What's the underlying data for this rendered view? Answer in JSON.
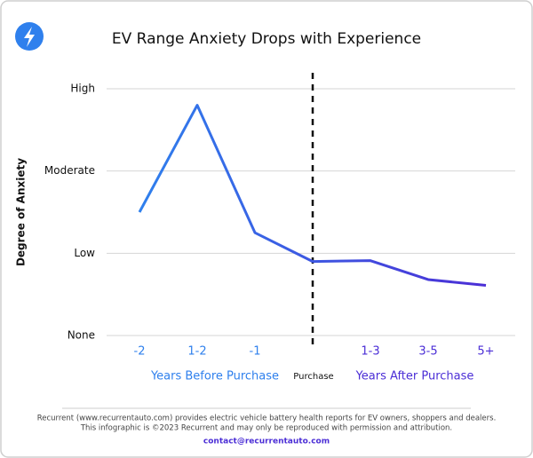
{
  "chart_data": {
    "type": "line",
    "title": "EV Range Anxiety Drops with Experience",
    "ylabel": "Degree of Anxiety",
    "categories": [
      "-2",
      "1-2",
      "-1",
      null,
      "1-3",
      "3-5",
      "5+"
    ],
    "series": [
      {
        "values": [
          1.5,
          2.8,
          1.25,
          0.9,
          0.91,
          0.68,
          0.61
        ],
        "gradient": [
          "#2f80ed",
          "#4b2ed6"
        ]
      }
    ],
    "ylim": [
      0,
      3
    ],
    "yticks": [
      {
        "value": 0,
        "label": "None"
      },
      {
        "value": 1,
        "label": "Low"
      },
      {
        "value": 2,
        "label": "Moderate"
      },
      {
        "value": 3,
        "label": "High"
      }
    ],
    "grid": true,
    "annotations": {
      "marker": "Purchase",
      "before": "Years Before Purchase",
      "after": "Years After Purchase"
    },
    "footer": [
      "Recurrent (www.recurrentauto.com) provides electric vehicle battery health reports for EV owners, shoppers and dealers.",
      "This infographic is ©2023 Recurrent and may only be reproduced with permission and attribution."
    ],
    "contact": "contact@recurrentauto.com"
  }
}
